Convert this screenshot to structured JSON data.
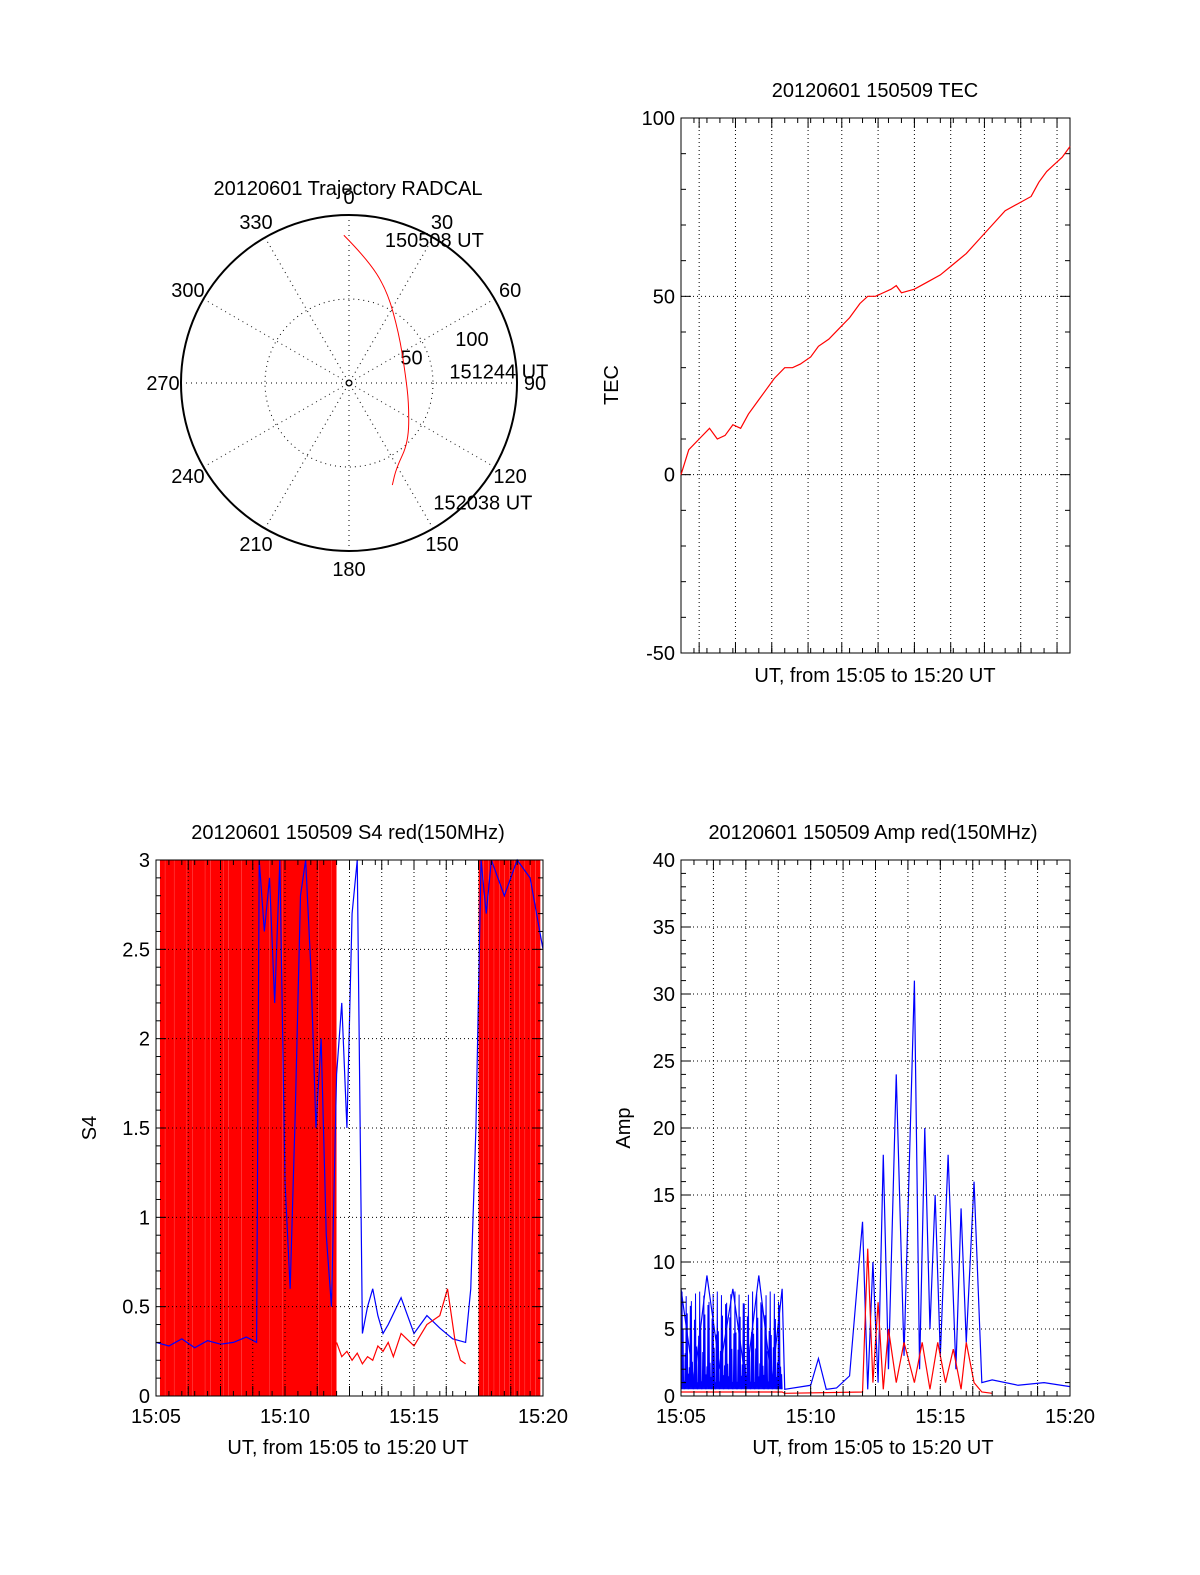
{
  "page": {
    "background": "#ffffff"
  },
  "colors": {
    "red": "#ff0000",
    "blue": "#0000ff",
    "axis": "#000000",
    "grid": "#000000"
  },
  "chart_data": [
    {
      "id": "trajectory",
      "type": "polar",
      "title": "20120601 Trajectory RADCAL",
      "radial_max": 100,
      "radial_ticks": [
        50,
        100
      ],
      "angle_labels": [
        "0",
        "30",
        "60",
        "90",
        "120",
        "150",
        "180",
        "210",
        "240",
        "270",
        "300",
        "330"
      ],
      "angle_values": [
        0,
        30,
        60,
        90,
        120,
        150,
        180,
        210,
        240,
        270,
        300,
        330
      ],
      "grid": "dotted",
      "series": [
        {
          "color": "#ff0000",
          "points": [
            {
              "az": 358,
              "r": 88
            },
            {
              "az": 8,
              "r": 75
            },
            {
              "az": 22,
              "r": 60
            },
            {
              "az": 45,
              "r": 42
            },
            {
              "az": 80,
              "r": 34
            },
            {
              "az": 110,
              "r": 38
            },
            {
              "az": 135,
              "r": 50
            },
            {
              "az": 151,
              "r": 58
            },
            {
              "az": 157,
              "r": 66
            }
          ]
        }
      ],
      "annotations": [
        {
          "text": "150508 UT",
          "az": 10,
          "r": 87
        },
        {
          "text": "151244 UT",
          "az": 82,
          "r": 54
        },
        {
          "text": "152038 UT",
          "az": 148,
          "r": 83
        }
      ]
    },
    {
      "id": "tec",
      "type": "line",
      "title": "20120601 150509 TEC",
      "xlabel": "UT, from 15:05 to 15:20 UT",
      "ylabel": "TEC",
      "xlim": [
        0,
        15
      ],
      "ylim": [
        -50,
        100
      ],
      "yticks": [
        -50,
        0,
        50,
        100
      ],
      "xticks": [],
      "grid": true,
      "grid_x_minutes": [
        0.7,
        2.1,
        3.5,
        4.9,
        6.2,
        7.6,
        9.0,
        10.4,
        11.7,
        13.1,
        14.5
      ],
      "series": [
        {
          "color": "#ff0000",
          "x": [
            0,
            0.3,
            0.7,
            1.1,
            1.4,
            1.7,
            2.0,
            2.3,
            2.6,
            3.0,
            3.3,
            3.6,
            4.0,
            4.3,
            4.6,
            5.0,
            5.3,
            5.7,
            6.1,
            6.5,
            6.9,
            7.2,
            7.5,
            7.8,
            8.1,
            8.3,
            8.5,
            9.0,
            9.5,
            10.0,
            10.5,
            11.0,
            11.5,
            12.0,
            12.5,
            13.0,
            13.5,
            13.8,
            14.1,
            14.4,
            14.7,
            15.0
          ],
          "y": [
            0,
            7,
            10,
            13,
            10,
            11,
            14,
            13,
            17,
            21,
            24,
            27,
            30,
            30,
            31,
            33,
            36,
            38,
            41,
            44,
            48,
            50,
            50,
            51,
            52,
            53,
            51,
            52,
            54,
            56,
            59,
            62,
            66,
            70,
            74,
            76,
            78,
            82,
            85,
            87,
            89,
            92
          ]
        }
      ]
    },
    {
      "id": "s4",
      "type": "line",
      "title": "20120601 150509 S4 red(150MHz)",
      "xlabel": "UT, from 15:05 to 15:20 UT",
      "ylabel": "S4",
      "xlim": [
        0,
        15
      ],
      "ylim": [
        0,
        3
      ],
      "yticks": [
        0,
        0.5,
        1,
        1.5,
        2,
        2.5,
        3
      ],
      "ytick_labels": [
        "0",
        "0.5",
        "1",
        "1.5",
        "2",
        "2.5",
        "3"
      ],
      "xticks": [
        0,
        5,
        10,
        15
      ],
      "xtick_labels": [
        "15:05",
        "15:10",
        "15:15",
        "15:20"
      ],
      "grid": true,
      "red_spikes": [
        0.25,
        0.45,
        0.6,
        0.8,
        0.95,
        1.1,
        1.3,
        1.5,
        1.65,
        1.8,
        2.0,
        2.2,
        2.35,
        2.5,
        2.7,
        2.9,
        3.05,
        3.2,
        3.4,
        3.55,
        3.7,
        3.85,
        4.0,
        4.15,
        4.3,
        4.5,
        4.65,
        4.8,
        5.0,
        5.15,
        5.3,
        5.45,
        5.6,
        5.75,
        5.9,
        6.05,
        6.2,
        6.4,
        6.55,
        6.7,
        6.9,
        12.6,
        12.8,
        13.0,
        13.2,
        13.4,
        13.6,
        13.8,
        14.0,
        14.2,
        14.4,
        14.6,
        14.8
      ],
      "series": [
        {
          "color": "#0000ff",
          "x": [
            0,
            0.5,
            1.0,
            1.5,
            2.0,
            2.5,
            3.0,
            3.5,
            3.9,
            4.0,
            4.2,
            4.4,
            4.6,
            4.8,
            5.0,
            5.2,
            5.4,
            5.6,
            5.8,
            6.0,
            6.2,
            6.4,
            6.6,
            6.8,
            7.0,
            7.2,
            7.4,
            7.6,
            7.8,
            8.0,
            8.2,
            8.4,
            8.6,
            8.8,
            9.0,
            9.5,
            10.0,
            10.5,
            11.0,
            11.5,
            12.0,
            12.2,
            12.4,
            12.6,
            12.8,
            13.0,
            13.5,
            14.0,
            14.5,
            15.0
          ],
          "y": [
            0.3,
            0.28,
            0.32,
            0.27,
            0.31,
            0.29,
            0.3,
            0.33,
            0.3,
            3.0,
            2.6,
            2.9,
            2.2,
            3.0,
            1.2,
            0.6,
            1.6,
            2.8,
            3.0,
            2.4,
            1.5,
            2.0,
            0.9,
            0.5,
            1.8,
            2.2,
            1.5,
            2.7,
            3.0,
            0.35,
            0.5,
            0.6,
            0.45,
            0.35,
            0.4,
            0.55,
            0.35,
            0.45,
            0.38,
            0.32,
            0.3,
            0.6,
            1.5,
            3.0,
            2.7,
            3.0,
            2.8,
            3.0,
            2.9,
            2.5
          ]
        },
        {
          "color": "#ff0000",
          "x": [
            7.0,
            7.2,
            7.4,
            7.6,
            7.8,
            8.0,
            8.2,
            8.4,
            8.6,
            8.8,
            9.0,
            9.2,
            9.5,
            10.0,
            10.5,
            11.0,
            11.3,
            11.6,
            11.8,
            12.0
          ],
          "y": [
            0.3,
            0.22,
            0.25,
            0.2,
            0.24,
            0.18,
            0.22,
            0.2,
            0.28,
            0.25,
            0.3,
            0.22,
            0.35,
            0.28,
            0.4,
            0.45,
            0.6,
            0.3,
            0.2,
            0.18
          ]
        }
      ]
    },
    {
      "id": "amp",
      "type": "line",
      "title": "20120601 150509 Amp red(150MHz)",
      "xlabel": "UT, from 15:05 to 15:20 UT",
      "ylabel": "Amp",
      "xlim": [
        0,
        15
      ],
      "ylim": [
        0,
        40
      ],
      "yticks": [
        0,
        5,
        10,
        15,
        20,
        25,
        30,
        35,
        40
      ],
      "xticks": [
        0,
        5,
        10,
        15
      ],
      "xtick_labels": [
        "15:05",
        "15:10",
        "15:15",
        "15:20"
      ],
      "grid": true,
      "series": [
        {
          "color": "#0000ff",
          "x": [
            0,
            0.5,
            1.0,
            1.5,
            2.0,
            2.5,
            3.0,
            3.5,
            3.9,
            4.0,
            5.0,
            5.3,
            5.6,
            6.0,
            6.5,
            7.0,
            7.2,
            7.4,
            7.6,
            7.8,
            8.0,
            8.3,
            8.6,
            9.0,
            9.2,
            9.4,
            9.6,
            9.8,
            10.0,
            10.3,
            10.6,
            10.8,
            11.0,
            11.3,
            11.6,
            12.0,
            13.0,
            14.0,
            15.0
          ],
          "y": [
            8,
            1,
            9,
            2,
            8,
            1,
            9,
            1,
            8,
            0.5,
            0.8,
            2.8,
            0.5,
            0.6,
            1.5,
            13,
            0.5,
            10,
            1,
            18,
            2,
            24,
            3,
            31,
            2,
            20,
            5,
            15,
            3,
            18,
            2,
            14,
            4,
            16,
            1,
            1.2,
            0.8,
            1,
            0.7
          ]
        },
        {
          "color": "#ff0000",
          "x": [
            0,
            3.9,
            4.0,
            7.0,
            7.2,
            7.4,
            7.6,
            7.8,
            8.0,
            8.3,
            8.6,
            9.0,
            9.3,
            9.6,
            9.9,
            10.2,
            10.5,
            10.8,
            11.0,
            11.3,
            11.6,
            12.0
          ],
          "y": [
            0.3,
            0.3,
            0.2,
            0.3,
            11,
            1,
            7,
            0.5,
            5,
            1,
            4,
            1,
            4,
            0.5,
            4,
            1,
            3.5,
            0.5,
            4,
            1,
            0.3,
            0.2
          ]
        }
      ]
    }
  ]
}
